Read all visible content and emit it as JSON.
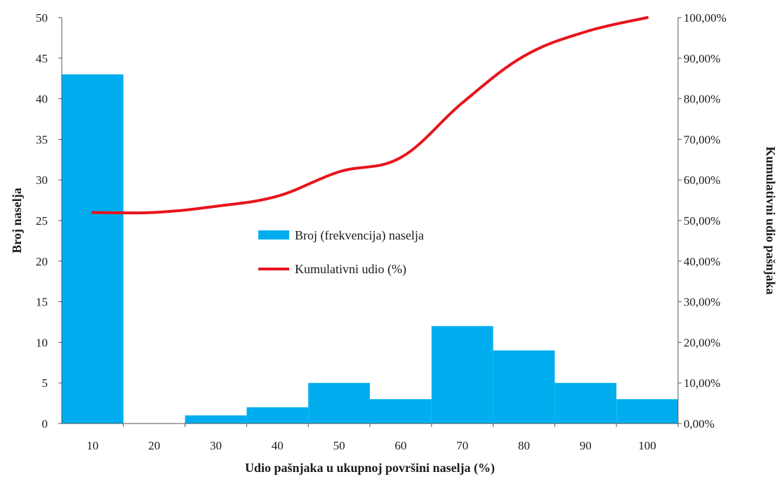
{
  "chart_data": {
    "type": "bar+line",
    "xlabel": "Udio pašnjaka u ukupnoj površini naselja (%)",
    "ylabel": "Broj naselja",
    "y2label": "Kumulativni udio pašnjaka",
    "categories": [
      "10",
      "20",
      "30",
      "40",
      "50",
      "60",
      "70",
      "80",
      "90",
      "100"
    ],
    "ylim": [
      0,
      50
    ],
    "yticks": [
      "0",
      "5",
      "10",
      "15",
      "20",
      "25",
      "30",
      "35",
      "40",
      "45",
      "50"
    ],
    "y2lim": [
      0,
      100
    ],
    "y2ticks": [
      "0,00%",
      "10,00%",
      "20,00%",
      "30,00%",
      "40,00%",
      "50,00%",
      "60,00%",
      "70,00%",
      "80,00%",
      "90,00%",
      "100,00%"
    ],
    "series": [
      {
        "name": "Broj (frekvencija) naselja",
        "type": "bar",
        "axis": "left",
        "color": "#00aeef",
        "values": [
          43,
          0,
          1,
          2,
          5,
          3,
          12,
          9,
          5,
          3
        ]
      },
      {
        "name": "Kumulativni udio (%)",
        "type": "line",
        "axis": "right",
        "color": "#e8141c",
        "values": [
          52,
          52,
          53.5,
          56,
          62,
          65.5,
          79,
          90.5,
          96.5,
          100
        ]
      }
    ],
    "legend": "center",
    "grid": false
  }
}
